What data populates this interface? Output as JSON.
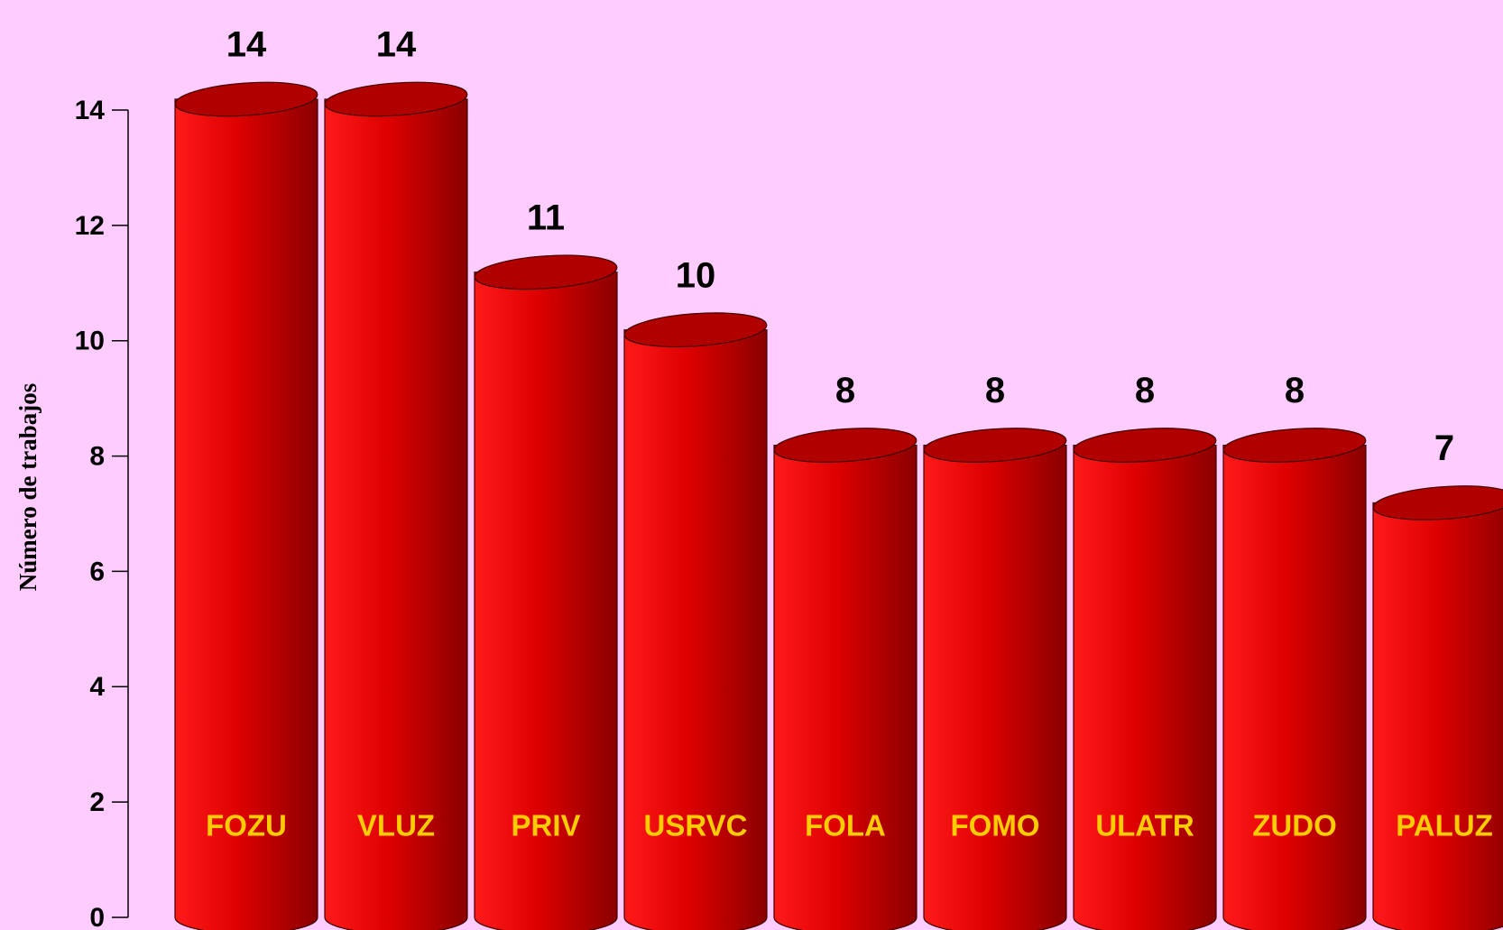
{
  "chart_data": {
    "type": "bar",
    "y_label": "Número de trabajos",
    "categories": [
      "FOZU",
      "VLUZ",
      "PRIV",
      "USRVC",
      "FOLA",
      "FOMO",
      "ULATR",
      "ZUDO",
      "PALUZ"
    ],
    "values": [
      14,
      14,
      11,
      10,
      8,
      8,
      8,
      8,
      7
    ],
    "color": "#e00000",
    "label_color": "#ffcc00",
    "ylim": [
      0,
      14
    ],
    "yticks": [
      0,
      2,
      4,
      6,
      8,
      10,
      12,
      14
    ]
  }
}
